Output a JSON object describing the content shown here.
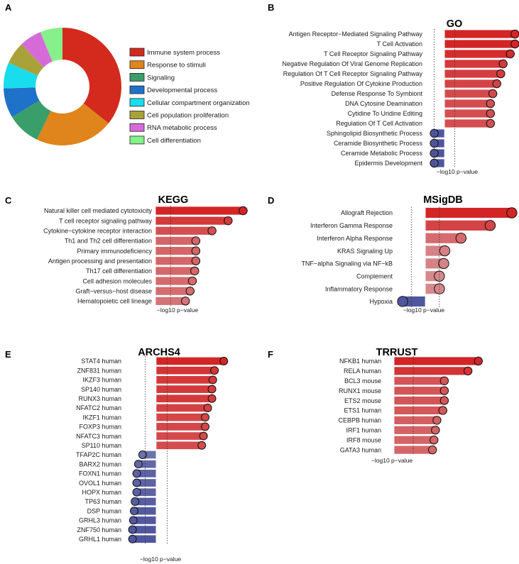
{
  "figure": {
    "panel_labels": [
      "A",
      "B",
      "C",
      "D",
      "E",
      "F"
    ]
  },
  "chart_data": [
    {
      "id": "A",
      "type": "pie",
      "title": "",
      "categories": [
        "Immune system process",
        "Response to stimuli",
        "Signaling",
        "Developmental process",
        "Cellular compartment organization",
        "Cell population proliferation",
        "RNA metabolic process",
        "Cell differentiation"
      ],
      "values": [
        35,
        21,
        9,
        8,
        7,
        6,
        6,
        6
      ],
      "colors": [
        "#d42a1d",
        "#e0841c",
        "#3a9e6a",
        "#1f72c9",
        "#19dcec",
        "#a9a23a",
        "#d66bd8",
        "#86f08a"
      ],
      "legend_position": "right"
    },
    {
      "id": "B",
      "type": "bar",
      "title": "GO",
      "xlabel": "−log10 p−value",
      "categories": [
        "Antigen Receptor−Mediated Signaling Pathway",
        "T Cell Activation",
        "T Cell Receptor Signaling Pathway",
        "Negative Regulation Of Viral Genome Replication",
        "Regulation Of T Cell Receptor Signaling Pathway",
        "Positive Regulation Of Cytokine Production",
        "Defense Response To Symbiont",
        "DNA Cytosine Deamination",
        "Cytidine To Uridine Editing",
        "Regulation Of T Cell Activation",
        "Sphingolipid Biosynthetic Process",
        "Ceramide Biosynthetic Process",
        "Ceramide Metabolic Process",
        "Epidermis Development"
      ],
      "values": [
        8.9,
        8.9,
        8.3,
        7.4,
        7.1,
        6.6,
        6.1,
        5.8,
        5.8,
        5.8,
        -1.3,
        -1.3,
        -1.3,
        -1.3
      ],
      "xlim": [
        -1.8,
        9.4
      ],
      "ref_lines": [
        -1.3,
        1.3
      ]
    },
    {
      "id": "C",
      "type": "bar",
      "title": "KEGG",
      "xlabel": "−log10 p−value",
      "categories": [
        "Natural killer cell mediated cytotoxicity",
        "T cell receptor signaling pathway",
        "Cytokine−cytokine receptor interaction",
        "Th1 and Th2 cell differentiation",
        "Primary immunodeficiency",
        "Antigen processing and presentation",
        "Th17 cell differentiation",
        "Cell adhesion molecules",
        "Graft−versus−host disease",
        "Hematopoietic cell lineage"
      ],
      "values": [
        7.6,
        6.3,
        4.9,
        3.5,
        3.5,
        3.5,
        3.4,
        3.2,
        3.0,
        2.6
      ],
      "xlim": [
        0,
        8.0
      ],
      "ref_lines": [
        1.3
      ]
    },
    {
      "id": "D",
      "type": "bar",
      "title": "MSigDB",
      "xlabel": "−log10 p−value",
      "categories": [
        "Allograft Rejection",
        "Interferon Gamma Response",
        "Interferon Alpha Response",
        "KRAS Signaling Up",
        "TNF−alpha Signaling via NF−kB",
        "Complement",
        "Inflammatory Response",
        "Hypoxia"
      ],
      "values": [
        8.0,
        6.0,
        3.3,
        1.8,
        1.7,
        1.3,
        1.3,
        -2.1
      ],
      "xlim": [
        -2.5,
        8.4
      ],
      "ref_lines": [
        -1.3,
        1.3
      ]
    },
    {
      "id": "E",
      "type": "bar",
      "title": "ARCHS4",
      "xlabel": "−log10 p−value",
      "categories": [
        "STAT4 human",
        "ZNF831 human",
        "IKZF3 human",
        "SP140 human",
        "RUNX3 human",
        "NFATC2 human",
        "IKZF1 human",
        "FOXP3 human",
        "NFATC3 human",
        "SP110 human",
        "TFAP2C human",
        "BARX2 human",
        "FOXN1 human",
        "OVOL1 human",
        "HOPX human",
        "TP63 human",
        "DSP human",
        "GRHL3 human",
        "ZNF750 human",
        "GRHL1 human"
      ],
      "values": [
        8.0,
        6.9,
        6.7,
        6.6,
        6.6,
        6.1,
        5.8,
        5.8,
        5.6,
        5.4,
        -1.6,
        -2.1,
        -2.3,
        -2.3,
        -2.3,
        -2.5,
        -2.6,
        -2.7,
        -2.8,
        -2.8
      ],
      "xlim": [
        -3.1,
        8.4
      ],
      "ref_lines": [
        -1.3,
        1.3
      ]
    },
    {
      "id": "F",
      "type": "bar",
      "title": "TRRUST",
      "xlabel": "−log10 p−value",
      "categories": [
        "NFKB1 human",
        "RELA human",
        "BCL3 mouse",
        "RUNX1 mouse",
        "ETS2 mouse",
        "ETS1 human",
        "CEBPB human",
        "IRF1 human",
        "IRF8 mouse",
        "GATA3 human"
      ],
      "values": [
        5.7,
        5.0,
        3.4,
        3.4,
        3.4,
        3.3,
        2.9,
        2.8,
        2.7,
        2.6
      ],
      "xlim": [
        0,
        6.0
      ],
      "ref_lines": [
        1.3
      ]
    }
  ]
}
